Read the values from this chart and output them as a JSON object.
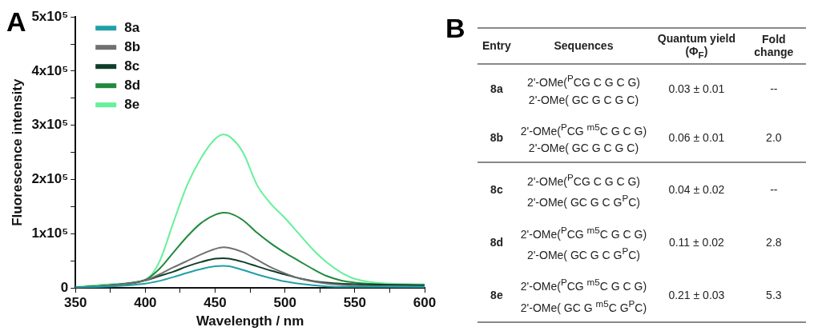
{
  "chart_data": [
    {
      "type": "line",
      "title": "A",
      "xlabel": "Wavelength / nm",
      "ylabel": "Fluorescence intensity",
      "xlim": [
        350,
        600
      ],
      "ylim": [
        0,
        500000
      ],
      "xticks": [
        350,
        {
          "value": 375,
          "label": null
        },
        400,
        {
          "value": 425,
          "label": null
        },
        450,
        {
          "value": 475,
          "label": null
        },
        500,
        {
          "value": 525,
          "label": null
        },
        550,
        {
          "value": 575,
          "label": null
        },
        600
      ],
      "yticks": [
        {
          "value": 0,
          "label": "0"
        },
        {
          "value": 50000,
          "label": null
        },
        {
          "value": 100000,
          "label": "1x10⁵"
        },
        {
          "value": 150000,
          "label": null
        },
        {
          "value": 200000,
          "label": "2x10⁵"
        },
        {
          "value": 250000,
          "label": null
        },
        {
          "value": 300000,
          "label": "3x10⁵"
        },
        {
          "value": 350000,
          "label": null
        },
        {
          "value": 400000,
          "label": "4x10⁵"
        },
        {
          "value": 450000,
          "label": null
        },
        {
          "value": 500000,
          "label": "5x10⁵"
        }
      ],
      "x": [
        350,
        375,
        400,
        410,
        420,
        430,
        440,
        450,
        456,
        460,
        470,
        480,
        490,
        500,
        510,
        520,
        530,
        540,
        550,
        575,
        600
      ],
      "grid": false,
      "legend": "top left",
      "marker": "none",
      "line_style": "solid",
      "series": [
        {
          "name": "8a",
          "color": "#20a0a8",
          "values": [
            1000,
            3000,
            8000,
            13000,
            20000,
            28000,
            35000,
            40000,
            41000,
            40000,
            33000,
            25000,
            18000,
            12000,
            8000,
            5000,
            3000,
            2000,
            2000,
            2000,
            2000
          ]
        },
        {
          "name": "8b",
          "color": "#707070",
          "values": [
            1000,
            5000,
            14000,
            25000,
            38000,
            50000,
            62000,
            72000,
            75000,
            74000,
            66000,
            52000,
            38000,
            27000,
            18000,
            12000,
            8000,
            6000,
            4000,
            3000,
            2000
          ]
        },
        {
          "name": "8c",
          "color": "#0f3d2a",
          "values": [
            1000,
            5000,
            14000,
            22000,
            30000,
            40000,
            48000,
            54000,
            55000,
            54000,
            48000,
            40000,
            32000,
            25000,
            18000,
            13000,
            10000,
            8000,
            7000,
            6000,
            5000
          ]
        },
        {
          "name": "8d",
          "color": "#1f8a3e",
          "values": [
            1000,
            5000,
            15000,
            35000,
            65000,
            95000,
            120000,
            135000,
            139000,
            138000,
            125000,
            102000,
            82000,
            65000,
            50000,
            35000,
            22000,
            14000,
            10000,
            6000,
            5000
          ]
        },
        {
          "name": "8e",
          "color": "#66f09a",
          "values": [
            2000,
            7000,
            15000,
            48000,
            120000,
            190000,
            240000,
            275000,
            283000,
            280000,
            250000,
            190000,
            155000,
            129000,
            100000,
            71000,
            47000,
            29000,
            17000,
            8000,
            7000
          ]
        }
      ]
    },
    {
      "type": "other",
      "title": "B",
      "annotations": [
        "Entry",
        "Sequences",
        "Quantum yield (Φ$_{F}$)",
        "Fold change",
        "8a",
        "2'-OMe($^{P}$CG C G C G)",
        "2'-OMe( GC G C G C)",
        "0.03 ± 0.01",
        "--",
        "8b",
        "2'-OMe($^{P}$CG $^{m5}$C G C G)",
        "2'-OMe( GC G C G C)",
        "0.06 ± 0.01",
        "2.0",
        "8c",
        "2'-OMe($^{P}$CG C G C G)",
        "2'-OMe( GC G C G$^{P}$C)",
        "0.04 ± 0.02",
        "--",
        "8d",
        "2'-OMe($^{P}$CG $^{m5}$C G C G)",
        "2'-OMe( GC G C G$^{P}$C)",
        "0.11 ± 0.02",
        "2.8",
        "8e",
        "2'-OMe($^{P}$CG $^{m5}$C G C G)",
        "2'-OMe( GC G $^{m5}$C G$^{P}$C)",
        "0.21 ± 0.03",
        "5.3"
      ]
    }
  ]
}
